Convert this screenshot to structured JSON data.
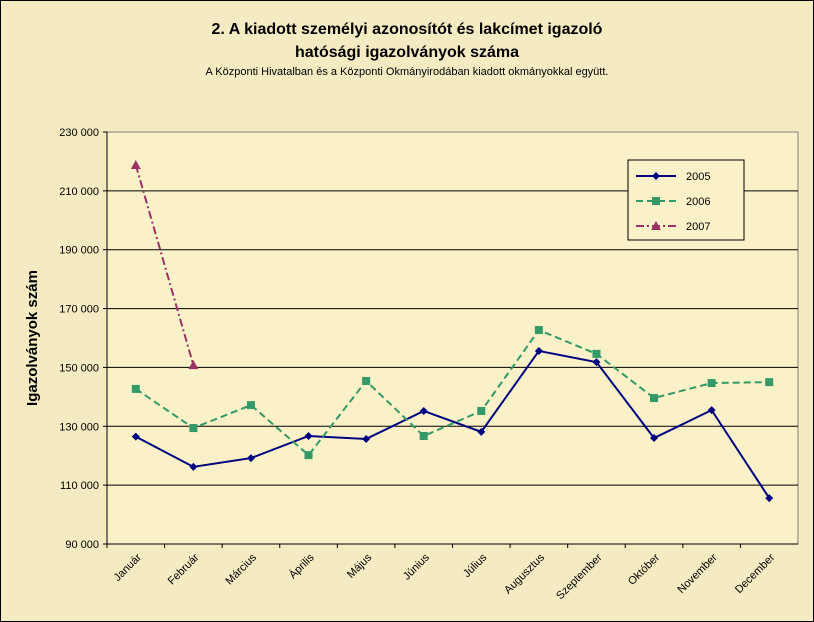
{
  "chart_data": {
    "type": "line",
    "title": "2. A kiadott személyi azonosítót és lakcímet igazoló",
    "title_line2": "hatósági igazolványok száma",
    "subtitle": "A Központi Hivatalban és a Központi Okmányirodában kiadott okmányokkal együtt.",
    "ylabel": "Igazolványok szám",
    "categories": [
      "Január",
      "Február",
      "Március",
      "Április",
      "Május",
      "Június",
      "Július",
      "Augusztus",
      "Szeptember",
      "Október",
      "November",
      "December"
    ],
    "series": [
      {
        "name": "2005",
        "color": "#000080",
        "marker": "diamond",
        "dash": "solid",
        "values": [
          126500,
          116200,
          119200,
          126700,
          125700,
          135200,
          128100,
          155600,
          151800,
          126000,
          135500,
          105600
        ]
      },
      {
        "name": "2006",
        "color": "#339966",
        "marker": "square",
        "dash": "dashed",
        "values": [
          142700,
          129400,
          137200,
          120200,
          145400,
          126700,
          135200,
          162700,
          154600,
          139600,
          144700,
          145000
        ]
      },
      {
        "name": "2007",
        "color": "#993366",
        "marker": "triangle",
        "dash": "dashdot",
        "values": [
          218800,
          150800,
          null,
          null,
          null,
          null,
          null,
          null,
          null,
          null,
          null,
          null
        ]
      }
    ],
    "ylim": [
      90000,
      230000
    ],
    "yticks": [
      {
        "value": 90000,
        "label": "90 000"
      },
      {
        "value": 110000,
        "label": "110 000"
      },
      {
        "value": 130000,
        "label": "130 000"
      },
      {
        "value": 150000,
        "label": "150 000"
      },
      {
        "value": 170000,
        "label": "170 000"
      },
      {
        "value": 190000,
        "label": "190 000"
      },
      {
        "value": 210000,
        "label": "210 000"
      },
      {
        "value": 230000,
        "label": "230 000"
      }
    ],
    "grid": true,
    "legend_position": "upper right"
  }
}
